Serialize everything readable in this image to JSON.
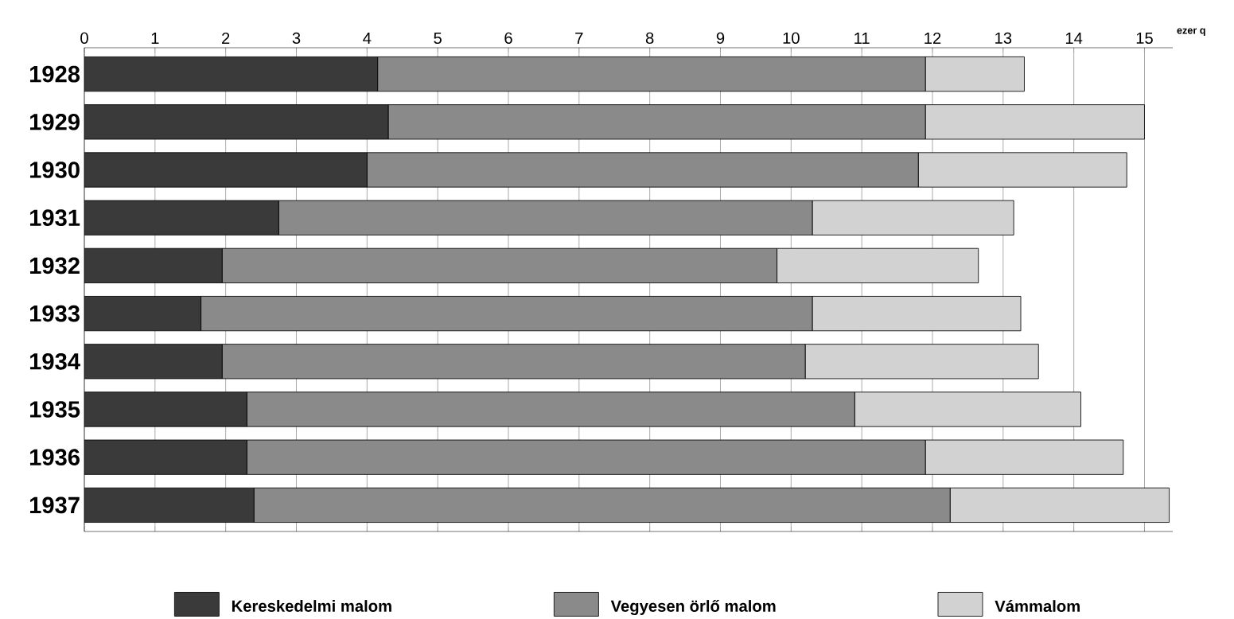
{
  "chart_data": {
    "type": "bar",
    "orientation": "horizontal",
    "stacked": true,
    "xlabel": "ezer q",
    "categories": [
      "1928",
      "1929",
      "1930",
      "1931",
      "1932",
      "1933",
      "1934",
      "1935",
      "1936",
      "1937"
    ],
    "series": [
      {
        "name": "Kereskedelmi malom",
        "color": "#3a3a3a",
        "values": [
          4.15,
          4.3,
          4.0,
          2.75,
          1.95,
          1.65,
          1.95,
          2.3,
          2.3,
          2.4
        ]
      },
      {
        "name": "Vegyesen örlő malom",
        "color": "#8a8a8a",
        "values": [
          7.75,
          7.6,
          7.8,
          7.55,
          7.85,
          8.65,
          8.25,
          8.6,
          9.6,
          9.85
        ]
      },
      {
        "name": "Vámmalom",
        "color": "#d2d2d2",
        "values": [
          1.4,
          3.1,
          2.95,
          2.85,
          2.85,
          2.95,
          3.3,
          3.2,
          2.8,
          3.1
        ]
      }
    ],
    "xlim": [
      0,
      15.4
    ],
    "xticks": [
      0,
      1,
      2,
      3,
      4,
      5,
      6,
      7,
      8,
      9,
      10,
      11,
      12,
      13,
      14,
      15
    ],
    "grid": "x",
    "legend": "bottom"
  }
}
